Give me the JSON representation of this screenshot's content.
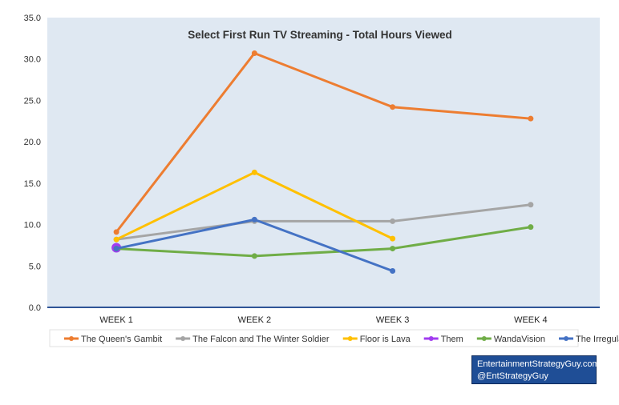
{
  "chart_data": {
    "type": "line",
    "title": "Select First Run TV Streaming - Total Hours Viewed",
    "xlabel": "",
    "ylabel": "",
    "categories": [
      "WEEK 1",
      "WEEK 2",
      "WEEK 3",
      "WEEK 4"
    ],
    "ylim": [
      0,
      35
    ],
    "yticks": [
      "0.0",
      "5.0",
      "10.0",
      "15.0",
      "20.0",
      "25.0",
      "30.0",
      "35.0"
    ],
    "grid": false,
    "legend_position": "bottom",
    "series": [
      {
        "name": "The Queen's Gambit",
        "color": "#ed7d31",
        "values": [
          9.1,
          30.7,
          24.2,
          22.8
        ]
      },
      {
        "name": "The Falcon and The Winter Soldier",
        "color": "#a5a5a5",
        "values": [
          8.2,
          10.4,
          10.4,
          12.4
        ]
      },
      {
        "name": "Floor is Lava",
        "color": "#ffc000",
        "values": [
          8.2,
          16.3,
          8.3,
          null
        ]
      },
      {
        "name": "Them",
        "color": "#a23cf0",
        "values": [
          7.2,
          null,
          null,
          null
        ]
      },
      {
        "name": "WandaVision",
        "color": "#70ad47",
        "values": [
          7.1,
          6.2,
          7.1,
          9.7
        ]
      },
      {
        "name": "The Irregulars",
        "color": "#4472c4",
        "values": [
          7.1,
          10.6,
          4.4,
          null
        ]
      }
    ]
  },
  "credit": {
    "line1": "EntertainmentStrategyGuy.com",
    "line2": "@EntStrategyGuy"
  }
}
